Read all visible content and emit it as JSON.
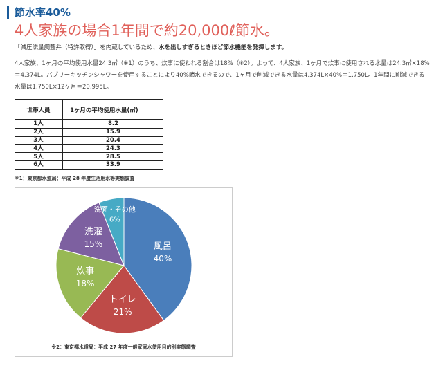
{
  "page": {
    "title": "節水率40%",
    "headline": "4人家族の場合1年間で約20,000ℓ節水。",
    "lead_part1": "「減圧流量調整弁（特許取得）」を内蔵しているため、",
    "lead_bold": "水を出しすぎるときほど節水機能を発揮します。",
    "body": "4人家族、1ヶ月の平均使用水量24.3㎥（※1）のうち、炊事に使われる割合は18%（※2）。よって、4人家族、1ヶ月で炊事に使用される水量は24.3㎥×18%＝4,374L。バブリーキッチンシャワーを使用することにより40%節水できるので、1ヶ月で削減できる水量は4,374L×40%＝1,750L。1年間に削減できる水量は1,750L×12ヶ月＝20,995L。"
  },
  "table": {
    "headers": [
      "世帯人員",
      "1ヶ月の平均使用水量(㎥)"
    ],
    "rows": [
      [
        "1人",
        "8.2"
      ],
      [
        "2人",
        "15.9"
      ],
      [
        "3人",
        "20.4"
      ],
      [
        "4人",
        "24.3"
      ],
      [
        "5人",
        "28.5"
      ],
      [
        "6人",
        "33.9"
      ]
    ],
    "footnote": "※1：東京都水道局：平成 28 年度生活用水等実態調査"
  },
  "chart_data": {
    "type": "pie",
    "slices": [
      {
        "label": "風呂",
        "value": 40,
        "value_label": "40%",
        "color": "#4a7ebb"
      },
      {
        "label": "トイレ",
        "value": 21,
        "value_label": "21%",
        "color": "#be4b48"
      },
      {
        "label": "炊事",
        "value": 18,
        "value_label": "18%",
        "color": "#98b954"
      },
      {
        "label": "洗濯",
        "value": 15,
        "value_label": "15%",
        "color": "#7d60a0"
      },
      {
        "label": "洗面・その他",
        "value": 6,
        "value_label": "6%",
        "color": "#46aac5"
      }
    ],
    "footnote": "※2：東京都水道局：平成 27 年度一般家庭水使用目的別実態調査"
  }
}
